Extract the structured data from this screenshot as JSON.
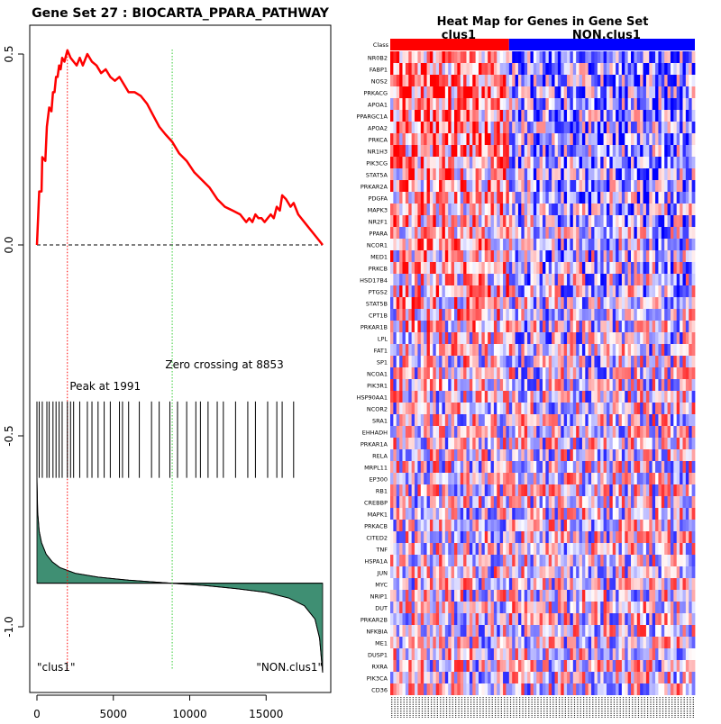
{
  "colors": {
    "es_curve": "#ff0000",
    "peak_line": "#ff0000",
    "zero_line": "#33cc33",
    "metric_fill": "#3f8f73",
    "class1": "#ff0000",
    "class2": "#0000ff",
    "heat_high": "#ff0000",
    "heat_low": "#0000ff"
  },
  "chart_data": [
    {
      "type": "line",
      "title": "Gene Set  27 : BIOCARTA_PPARA_PATHWAY",
      "x_ticks": [
        0,
        5000,
        10000,
        15000
      ],
      "y_ticks": [
        0.5,
        0.0,
        -0.5,
        -1.0
      ],
      "y_tick_labels": [
        "0.5",
        "0.0",
        "-0.5",
        "-1.0"
      ],
      "xlim": [
        0,
        18700
      ],
      "ylim": [
        -1.16,
        0.55
      ],
      "es_points": [
        [
          0,
          0.0
        ],
        [
          150,
          0.14
        ],
        [
          300,
          0.14
        ],
        [
          350,
          0.23
        ],
        [
          550,
          0.22
        ],
        [
          650,
          0.31
        ],
        [
          800,
          0.36
        ],
        [
          950,
          0.35
        ],
        [
          1050,
          0.4
        ],
        [
          1150,
          0.4
        ],
        [
          1250,
          0.44
        ],
        [
          1350,
          0.44
        ],
        [
          1450,
          0.47
        ],
        [
          1550,
          0.46
        ],
        [
          1650,
          0.49
        ],
        [
          1800,
          0.48
        ],
        [
          1991,
          0.51
        ],
        [
          2200,
          0.49
        ],
        [
          2400,
          0.48
        ],
        [
          2600,
          0.47
        ],
        [
          2800,
          0.49
        ],
        [
          3000,
          0.47
        ],
        [
          3300,
          0.5
        ],
        [
          3600,
          0.48
        ],
        [
          3900,
          0.47
        ],
        [
          4200,
          0.45
        ],
        [
          4500,
          0.46
        ],
        [
          4800,
          0.44
        ],
        [
          5100,
          0.43
        ],
        [
          5400,
          0.44
        ],
        [
          5700,
          0.42
        ],
        [
          6000,
          0.4
        ],
        [
          6400,
          0.4
        ],
        [
          6800,
          0.39
        ],
        [
          7200,
          0.37
        ],
        [
          7600,
          0.34
        ],
        [
          8000,
          0.31
        ],
        [
          8400,
          0.29
        ],
        [
          8853,
          0.27
        ],
        [
          9300,
          0.24
        ],
        [
          9800,
          0.22
        ],
        [
          10300,
          0.19
        ],
        [
          10800,
          0.17
        ],
        [
          11300,
          0.15
        ],
        [
          11800,
          0.12
        ],
        [
          12300,
          0.1
        ],
        [
          12800,
          0.09
        ],
        [
          13300,
          0.08
        ],
        [
          13700,
          0.06
        ],
        [
          13900,
          0.07
        ],
        [
          14100,
          0.06
        ],
        [
          14300,
          0.08
        ],
        [
          14500,
          0.07
        ],
        [
          14700,
          0.07
        ],
        [
          14900,
          0.06
        ],
        [
          15100,
          0.07
        ],
        [
          15300,
          0.08
        ],
        [
          15500,
          0.07
        ],
        [
          15700,
          0.1
        ],
        [
          15900,
          0.09
        ],
        [
          16050,
          0.13
        ],
        [
          16300,
          0.12
        ],
        [
          16600,
          0.1
        ],
        [
          16800,
          0.11
        ],
        [
          17100,
          0.08
        ],
        [
          17700,
          0.05
        ],
        [
          18300,
          0.02
        ],
        [
          18700,
          0.0
        ]
      ],
      "hit_positions": [
        0,
        150,
        350,
        650,
        800,
        1050,
        1250,
        1450,
        1650,
        1991,
        2200,
        2400,
        2800,
        3300,
        3600,
        4000,
        4400,
        4800,
        5400,
        5600,
        6000,
        6700,
        7500,
        8000,
        8700,
        9200,
        9800,
        10400,
        10700,
        11200,
        11800,
        12200,
        13000,
        13800,
        14300,
        15100,
        15700,
        16050,
        16800
      ],
      "hit_ylim": [
        -0.61,
        -0.41
      ],
      "metric_points": [
        [
          0,
          -0.61
        ],
        [
          50,
          -0.7
        ],
        [
          150,
          -0.75
        ],
        [
          300,
          -0.78
        ],
        [
          600,
          -0.81
        ],
        [
          1000,
          -0.83
        ],
        [
          1500,
          -0.845
        ],
        [
          2500,
          -0.86
        ],
        [
          4000,
          -0.87
        ],
        [
          6000,
          -0.878
        ],
        [
          8853,
          -0.886
        ],
        [
          11000,
          -0.892
        ],
        [
          13000,
          -0.9
        ],
        [
          15000,
          -0.91
        ],
        [
          16500,
          -0.925
        ],
        [
          17500,
          -0.945
        ],
        [
          18200,
          -0.98
        ],
        [
          18500,
          -1.03
        ],
        [
          18650,
          -1.1
        ],
        [
          18700,
          -1.12
        ]
      ],
      "metric_baseline": -0.886,
      "peak_label": "Peak at 1991",
      "peak_x": 1991,
      "zero_label": "Zero crossing at 8853",
      "zero_x": 8853,
      "class_left_label": "\"clus1\"",
      "class_right_label": "\"NON.clus1\""
    },
    {
      "type": "heatmap",
      "title": "Heat Map for Genes in Gene Set",
      "class_labels": [
        "clus1",
        "NON.clus1"
      ],
      "class_split": 0.39,
      "row_header": "Class",
      "genes": [
        "NR0B2",
        "FABP1",
        "NOS2",
        "PRKACG",
        "APOA1",
        "PPARGC1A",
        "APOA2",
        "PRKCA",
        "NR1H3",
        "PIK3CG",
        "STAT5A",
        "PRKAR2A",
        "PDGFA",
        "MAPK3",
        "NR2F1",
        "PPARA",
        "NCOR1",
        "MED1",
        "PRKCB",
        "HSD17B4",
        "PTGS2",
        "STAT5B",
        "CPT1B",
        "PRKAR1B",
        "LPL",
        "FAT1",
        "SP1",
        "NCOA1",
        "PIK3R1",
        "HSP90AA1",
        "NCOR2",
        "SRA1",
        "EHHADH",
        "PRKAR1A",
        "RELA",
        "MRPL11",
        "EP300",
        "RB1",
        "CREBBP",
        "MAPK1",
        "PRKACB",
        "CITED2",
        "TNF",
        "HSPA1A",
        "JUN",
        "MYC",
        "NRIP1",
        "DUT",
        "PRKAR2B",
        "NFKBIA",
        "ME1",
        "DUSP1",
        "RXRA",
        "PIK3CA",
        "CD36"
      ]
    }
  ]
}
